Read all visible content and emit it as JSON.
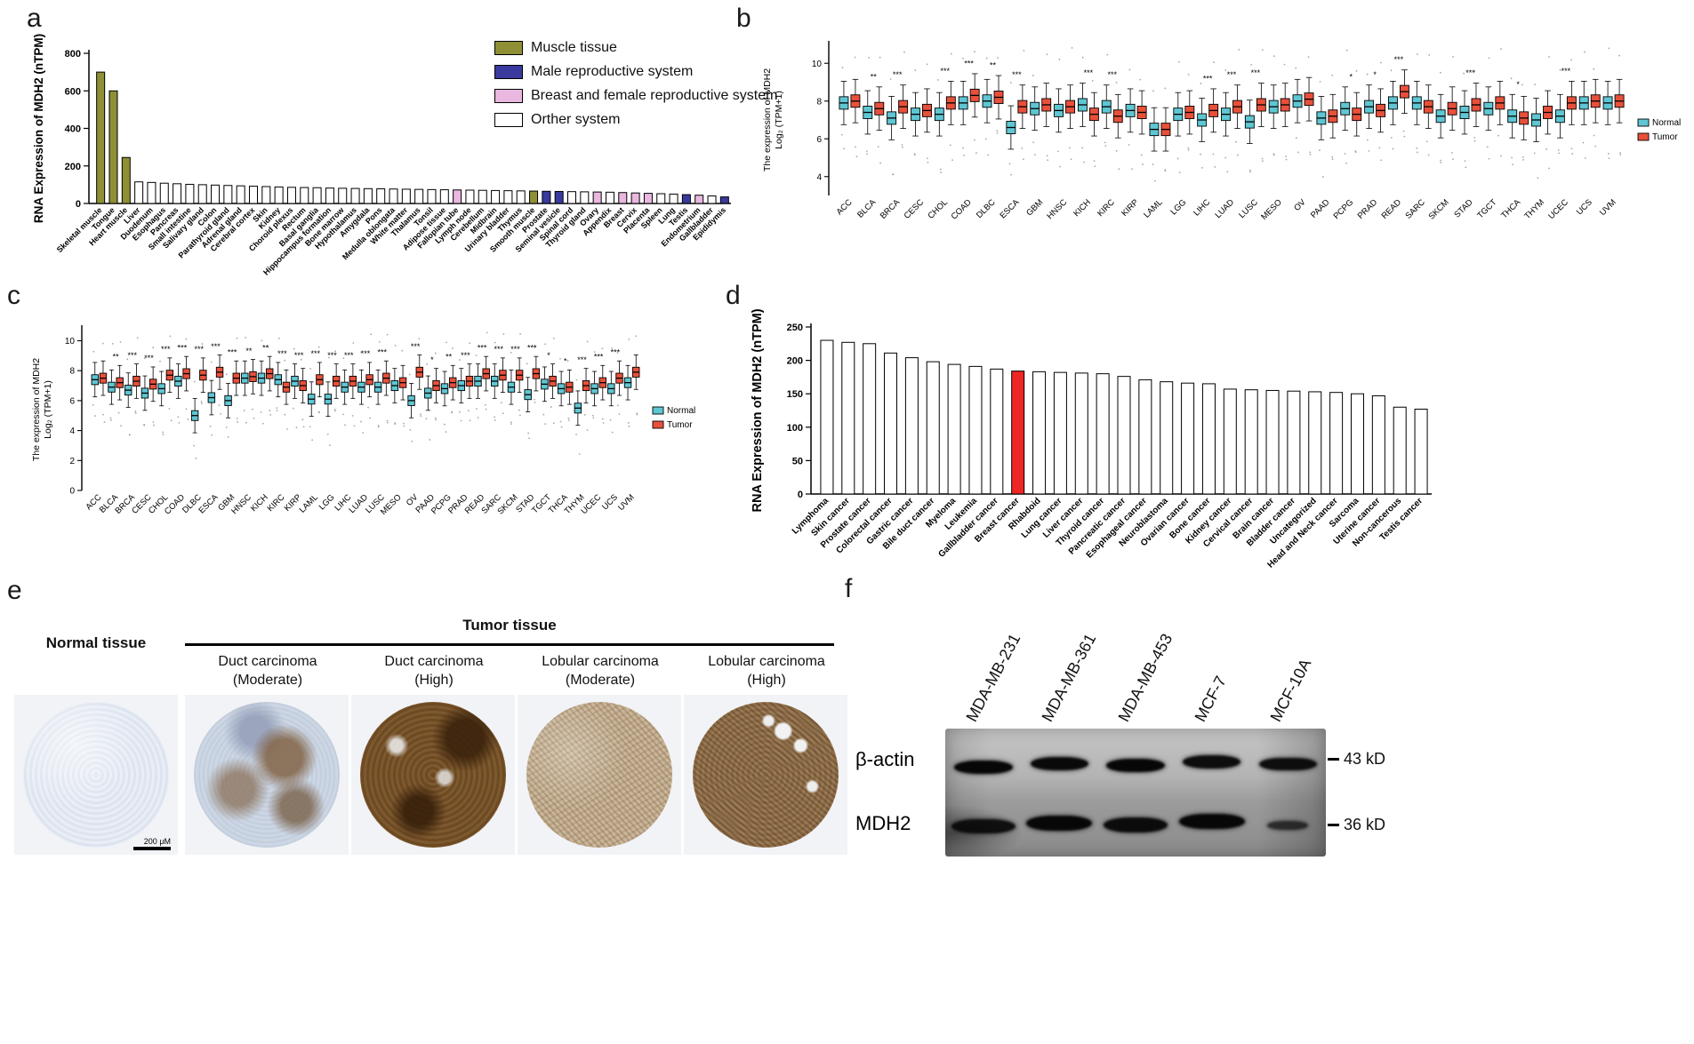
{
  "panels": {
    "a": "a",
    "b": "b",
    "c": "c",
    "d": "d",
    "e": "e",
    "f": "f"
  },
  "chart_data": [
    {
      "panel": "a",
      "type": "bar",
      "title": "",
      "ylabel": "RNA Expression of MDH2 (nTPM)",
      "xlabel": "",
      "ylim": [
        0,
        800
      ],
      "yticks": [
        0,
        200,
        400,
        600,
        800
      ],
      "legend": [
        {
          "label": "Muscle tissue",
          "color": "#8F8F36",
          "key": "muscle"
        },
        {
          "label": "Male reproductive system",
          "color": "#3A3A9E",
          "key": "male"
        },
        {
          "label": "Breast and female reproductive system",
          "color": "#E9B7DF",
          "key": "female"
        },
        {
          "label": "Orther system",
          "color": "#FFFFFF",
          "key": "other"
        }
      ],
      "group_colors": {
        "muscle": "#8F8F36",
        "male": "#3A3A9E",
        "female": "#E9B7DF",
        "other": "#FFFFFF"
      },
      "categories": [
        "Skeletal muscle",
        "Tongue",
        "Heart muscle",
        "Liver",
        "Duodenum",
        "Esophagus",
        "Pancreas",
        "Small intestine",
        "Salivary gland",
        "Colon",
        "Parathyroid gland",
        "Adrenal gland",
        "Cerebral cortex",
        "Skin",
        "Kidney",
        "Choroid plexus",
        "Rectum",
        "Basal ganglia",
        "Hippocampus formation",
        "Bone marrow",
        "Hypothalamus",
        "Amygdala",
        "Pons",
        "Medulla oblongata",
        "White matter",
        "Thalamus",
        "Tonsil",
        "Adipose tissue",
        "Fallopian tube",
        "Lymph node",
        "Cerebellum",
        "Midbrain",
        "Urinary bladder",
        "Thymus",
        "Smooth muscle",
        "Prostate",
        "Seminal vesicle",
        "Spinal cord",
        "Thyroid gland",
        "Ovary",
        "Appendix",
        "Breast",
        "Cervix",
        "Placenta",
        "Spleen",
        "Lung",
        "Testis",
        "Endometrium",
        "Gallbladder",
        "Epididymis"
      ],
      "values": [
        700,
        600,
        245,
        115,
        112,
        108,
        105,
        102,
        100,
        98,
        96,
        94,
        92,
        90,
        88,
        86,
        85,
        84,
        82,
        81,
        80,
        79,
        78,
        77,
        76,
        75,
        74,
        73,
        72,
        71,
        70,
        69,
        68,
        67,
        66,
        65,
        64,
        63,
        62,
        61,
        60,
        58,
        56,
        54,
        52,
        50,
        47,
        44,
        40,
        35
      ],
      "groups": [
        "muscle",
        "muscle",
        "muscle",
        "other",
        "other",
        "other",
        "other",
        "other",
        "other",
        "other",
        "other",
        "other",
        "other",
        "other",
        "other",
        "other",
        "other",
        "other",
        "other",
        "other",
        "other",
        "other",
        "other",
        "other",
        "other",
        "other",
        "other",
        "other",
        "female",
        "other",
        "other",
        "other",
        "other",
        "other",
        "muscle",
        "male",
        "male",
        "other",
        "other",
        "female",
        "other",
        "female",
        "female",
        "female",
        "other",
        "other",
        "male",
        "female",
        "other",
        "male"
      ]
    },
    {
      "panel": "b",
      "type": "boxplot",
      "ylabel": [
        "The expression of MDH2",
        "Log₂ (TPM+1)"
      ],
      "ylim": [
        3,
        11
      ],
      "yticks": [
        4,
        6,
        8,
        10
      ],
      "categories": [
        "ACC",
        "BLCA",
        "BRCA",
        "CESC",
        "CHOL",
        "COAD",
        "DLBC",
        "ESCA",
        "GBM",
        "HNSC",
        "KICH",
        "KIRC",
        "KIRP",
        "LAML",
        "LGG",
        "LIHC",
        "LUAD",
        "LUSC",
        "MESO",
        "OV",
        "PAAD",
        "PCPG",
        "PRAD",
        "READ",
        "SARC",
        "SKCM",
        "STAD",
        "TGCT",
        "THCA",
        "THYM",
        "UCEC",
        "UCS",
        "UVM"
      ],
      "series": [
        {
          "name": "Normal",
          "color": "#5FC6D3",
          "medians": [
            7.9,
            7.4,
            7.1,
            7.3,
            7.3,
            7.9,
            8.0,
            6.6,
            7.6,
            7.5,
            7.8,
            7.7,
            7.5,
            6.5,
            7.3,
            7.0,
            7.3,
            6.9,
            7.7,
            8.0,
            7.1,
            7.6,
            7.7,
            7.9,
            7.9,
            7.2,
            7.4,
            7.6,
            7.2,
            7.0,
            7.2,
            7.9,
            7.9
          ]
        },
        {
          "name": "Tumor",
          "color": "#E8503A",
          "medians": [
            8.0,
            7.6,
            7.7,
            7.5,
            7.9,
            8.3,
            8.2,
            7.7,
            7.8,
            7.7,
            7.3,
            7.2,
            7.4,
            6.5,
            7.4,
            7.5,
            7.7,
            7.8,
            7.8,
            8.1,
            7.2,
            7.3,
            7.5,
            8.5,
            7.7,
            7.6,
            7.8,
            7.9,
            7.1,
            7.4,
            7.9,
            8.0,
            8.0
          ]
        }
      ],
      "significance": [
        "",
        "**",
        "***",
        "",
        "***",
        "***",
        "**",
        "***",
        "",
        "",
        "***",
        "***",
        "",
        "",
        "",
        "***",
        "***",
        "***",
        "",
        "",
        "",
        "*",
        "*",
        "***",
        "",
        "",
        "***",
        "",
        "*",
        "",
        "***",
        "",
        ""
      ]
    },
    {
      "panel": "c",
      "type": "boxplot",
      "ylabel": [
        "The expression of MDH2",
        "Log₂ (TPM+1)"
      ],
      "ylim": [
        0,
        10.8
      ],
      "yticks": [
        0,
        2,
        4,
        6,
        8,
        10
      ],
      "categories": [
        "ACC",
        "BLCA",
        "BRCA",
        "CESC",
        "CHOL",
        "COAD",
        "DLBC",
        "ESCA",
        "GBM",
        "HNSC",
        "KICH",
        "KIRC",
        "KIRP",
        "LAML",
        "LGG",
        "LIHC",
        "LUAD",
        "LUSC",
        "MESO",
        "OV",
        "PAAD",
        "PCPG",
        "PRAD",
        "READ",
        "SARC",
        "SKCM",
        "STAD",
        "TGCT",
        "THCA",
        "THYM",
        "UCEC",
        "UCS",
        "UVM"
      ],
      "series": [
        {
          "name": "Normal",
          "color": "#5FC6D3",
          "medians": [
            7.4,
            6.9,
            6.7,
            6.5,
            6.8,
            7.3,
            5.0,
            6.2,
            6.0,
            7.5,
            7.5,
            7.4,
            7.3,
            6.1,
            6.1,
            6.9,
            6.9,
            6.9,
            7.0,
            6.0,
            6.5,
            6.8,
            7.0,
            7.3,
            7.3,
            6.9,
            6.4,
            7.1,
            6.8,
            5.5,
            6.8,
            6.8,
            7.2
          ]
        },
        {
          "name": "Tumor",
          "color": "#E8503A",
          "medians": [
            7.5,
            7.2,
            7.3,
            7.1,
            7.7,
            7.8,
            7.7,
            7.9,
            7.5,
            7.6,
            7.8,
            6.9,
            7.0,
            7.4,
            7.3,
            7.3,
            7.4,
            7.5,
            7.2,
            7.9,
            7.0,
            7.2,
            7.3,
            7.8,
            7.7,
            7.7,
            7.8,
            7.3,
            6.9,
            7.0,
            7.2,
            7.5,
            7.9
          ]
        }
      ],
      "significance": [
        "",
        "**",
        "***",
        "***",
        "***",
        "***",
        "***",
        "***",
        "***",
        "**",
        "**",
        "***",
        "***",
        "***",
        "***",
        "***",
        "***",
        "***",
        "",
        "***",
        "*",
        "**",
        "***",
        "***",
        "***",
        "***",
        "***",
        "*",
        "*",
        "***",
        "***",
        "***",
        ""
      ]
    },
    {
      "panel": "d",
      "type": "bar",
      "title": "",
      "ylabel": "RNA Expression of MDH2 (nTPM)",
      "xlabel": "",
      "ylim": [
        0,
        250
      ],
      "yticks": [
        0,
        50,
        100,
        150,
        200,
        250
      ],
      "highlight": "Breast cancer",
      "highlight_color": "#EE2724",
      "bar_color": "#FFFFFF",
      "categories": [
        "Lymphoma",
        "Skin cancer",
        "Prostate cancer",
        "Colorectal cancer",
        "Gastric cancer",
        "Bile duct cancer",
        "Myeloma",
        "Leukemia",
        "Gallbladder cancer",
        "Breast cancer",
        "Rhabdoid",
        "Lung cancer",
        "Liver cancer",
        "Thyroid cancer",
        "Pancreatic cancer",
        "Esophageal cancer",
        "Neuroblastoma",
        "Ovarian cancer",
        "Bone cancer",
        "Kidney cancer",
        "Cervical cancer",
        "Brain cancer",
        "Bladder cancer",
        "Uncategorized",
        "Head and Neck cancer",
        "Sarcoma",
        "Uterine cancer",
        "Non-cancerous",
        "Testis cancer"
      ],
      "values": [
        230,
        227,
        225,
        211,
        204,
        198,
        194,
        191,
        187,
        184,
        183,
        182,
        181,
        180,
        176,
        171,
        168,
        166,
        165,
        157,
        156,
        155,
        154,
        153,
        152,
        150,
        147,
        130,
        127
      ]
    }
  ],
  "panel_e": {
    "normal_label": "Normal tissue",
    "tumor_header": "Tumor tissue",
    "columns": [
      "Duct carcinoma\n(Moderate)",
      "Duct carcinoma\n(High)",
      "Lobular carcinoma\n(Moderate)",
      "Lobular carcinoma\n(High)"
    ],
    "scale_bar": "200 μM"
  },
  "panel_f": {
    "lanes": [
      "MDA-MB-231",
      "MDA-MB-361",
      "MDA-MB-453",
      "MCF-7",
      "MCF-10A"
    ],
    "rows": [
      {
        "protein": "β-actin",
        "size": "43 kD"
      },
      {
        "protein": "MDH2",
        "size": "36 kD"
      }
    ],
    "bands": {
      "beta_actin": [
        1,
        0.95,
        1,
        0.9,
        0.88
      ],
      "mdh2": [
        0.85,
        1,
        0.92,
        1,
        0.4
      ]
    }
  }
}
